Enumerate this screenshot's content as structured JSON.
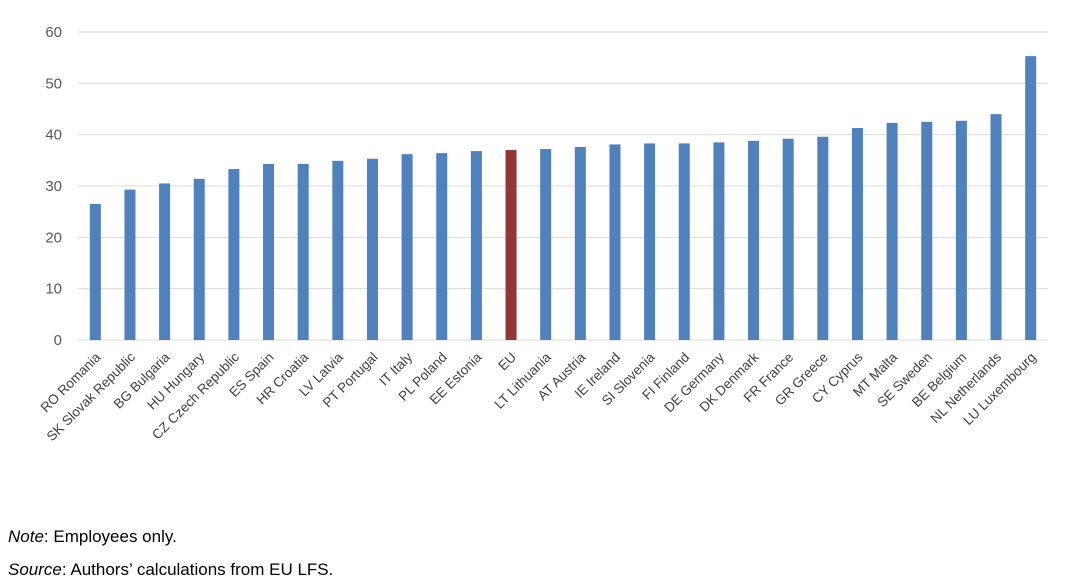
{
  "chart_data": {
    "type": "bar",
    "title": "",
    "xlabel": "",
    "ylabel": "",
    "ylim": [
      0,
      60
    ],
    "yticks": [
      0,
      10,
      20,
      30,
      40,
      50,
      60
    ],
    "grid": true,
    "legend": "none",
    "categories": [
      "RO Romania",
      "SK Slovak Republic",
      "BG Bulgaria",
      "HU Hungary",
      "CZ Czech Republic",
      "ES Spain",
      "HR Croatia",
      "LV Latvia",
      "PT Portugal",
      "IT Italy",
      "PL Poland",
      "EE Estonia",
      "EU",
      "LT Lithuania",
      "AT Austria",
      "IE Ireland",
      "SI Slovenia",
      "FI Finland",
      "DE Germany",
      "DK Denmark",
      "FR France",
      "GR Greece",
      "CY Cyprus",
      "MT Malta",
      "SE Sweden",
      "BE Belgium",
      "NL Netherlands",
      "LU Luxembourg"
    ],
    "values": [
      26.5,
      29.3,
      30.5,
      31.4,
      33.3,
      34.3,
      34.3,
      34.9,
      35.3,
      36.2,
      36.4,
      36.8,
      37.0,
      37.2,
      37.6,
      38.1,
      38.3,
      38.3,
      38.5,
      38.8,
      39.2,
      39.6,
      41.3,
      42.3,
      42.5,
      42.7,
      44.0,
      55.3
    ],
    "highlight_category": "EU",
    "colors": {
      "bar": "#4f81bd",
      "highlight": "#943634",
      "grid": "#d9d9d9"
    }
  },
  "notes": {
    "note_label": "Note",
    "note_text": ": Employees only.",
    "source_label": "Source",
    "source_text": ": Authors’ calculations from EU LFS."
  }
}
